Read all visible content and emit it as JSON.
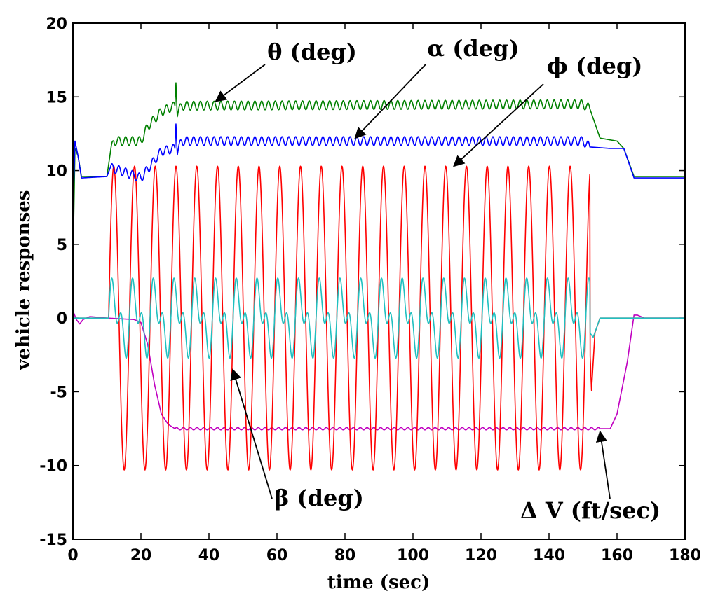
{
  "chart_data": {
    "type": "line",
    "title": "",
    "xlabel": "time (sec)",
    "ylabel": "vehicle responses",
    "xlim": [
      0,
      180
    ],
    "ylim": [
      -15,
      20
    ],
    "xticks": [
      0,
      20,
      40,
      60,
      80,
      100,
      120,
      140,
      160,
      180
    ],
    "yticks": [
      -15,
      -10,
      -5,
      0,
      5,
      10,
      15,
      20
    ],
    "grid": false,
    "series": [
      {
        "name": "θ (deg)",
        "color": "#008000",
        "model": "piecewise with small oscillation",
        "points": [
          [
            0,
            3.5
          ],
          [
            0.6,
            11.5
          ],
          [
            1.5,
            11.0
          ],
          [
            2.5,
            9.6
          ],
          [
            10,
            9.6
          ],
          [
            11,
            11.2
          ],
          [
            12,
            12.0
          ],
          [
            20,
            12.0
          ],
          [
            22,
            13.0
          ],
          [
            26,
            14.0
          ],
          [
            30,
            14.4
          ],
          [
            30.3,
            16.2
          ],
          [
            30.7,
            13.9
          ],
          [
            32,
            14.4
          ],
          [
            150,
            14.5
          ],
          [
            152,
            14.2
          ],
          [
            155,
            12.2
          ],
          [
            160,
            12.0
          ],
          [
            162,
            11.5
          ],
          [
            165,
            9.6
          ],
          [
            180,
            9.6
          ]
        ],
        "oscillation": {
          "start": 11,
          "end": 152,
          "amplitude": 0.3,
          "period": 2.0
        }
      },
      {
        "name": "α (deg)",
        "color": "#0000ff",
        "model": "piecewise with small oscillation",
        "points": [
          [
            0,
            7.0
          ],
          [
            0.6,
            12.0
          ],
          [
            1.5,
            11.0
          ],
          [
            2.5,
            9.5
          ],
          [
            10,
            9.6
          ],
          [
            11,
            10.2
          ],
          [
            14,
            10.0
          ],
          [
            20,
            9.5
          ],
          [
            24,
            10.7
          ],
          [
            26,
            11.3
          ],
          [
            30,
            11.5
          ],
          [
            30.3,
            13.4
          ],
          [
            30.7,
            11.3
          ],
          [
            32,
            12.0
          ],
          [
            150,
            12.0
          ],
          [
            152,
            11.6
          ],
          [
            158,
            11.5
          ],
          [
            162,
            11.5
          ],
          [
            165,
            9.5
          ],
          [
            180,
            9.5
          ]
        ],
        "oscillation": {
          "start": 11,
          "end": 152,
          "amplitude": 0.3,
          "period": 2.0
        }
      },
      {
        "name": "φ (deg)",
        "color": "#ff0000",
        "model": "sinusoid",
        "start": 10.5,
        "end": 152,
        "amplitude": 10.3,
        "period": 6.1,
        "after": [
          [
            152,
            -2.0
          ],
          [
            152.5,
            -4.9
          ],
          [
            153.5,
            -1.0
          ],
          [
            155,
            0
          ],
          [
            180,
            0
          ]
        ]
      },
      {
        "name": "β (deg)",
        "color": "#20c0c0",
        "model": "sinusoid with harmonic",
        "start": 10.5,
        "end": 152,
        "amplitude": 2.8,
        "period": 6.1,
        "after": [
          [
            152,
            -1.0
          ],
          [
            153,
            -1.3
          ],
          [
            155,
            0
          ],
          [
            180,
            0
          ]
        ]
      },
      {
        "name": "Δ V (ft/sec)",
        "color": "#c000c0",
        "model": "piecewise",
        "points": [
          [
            0,
            0.5
          ],
          [
            1,
            -0.1
          ],
          [
            2,
            -0.4
          ],
          [
            3,
            -0.1
          ],
          [
            5,
            0.1
          ],
          [
            10,
            0.0
          ],
          [
            18,
            -0.1
          ],
          [
            20,
            -0.3
          ],
          [
            22,
            -1.8
          ],
          [
            24,
            -4.5
          ],
          [
            26,
            -6.5
          ],
          [
            28,
            -7.2
          ],
          [
            30,
            -7.5
          ],
          [
            155,
            -7.5
          ],
          [
            158,
            -7.5
          ],
          [
            160,
            -6.5
          ],
          [
            163,
            -3.0
          ],
          [
            165,
            0.2
          ],
          [
            166,
            0.2
          ],
          [
            168,
            0.0
          ],
          [
            180,
            0.0
          ]
        ],
        "oscillation": {
          "start": 30,
          "end": 155,
          "amplitude": 0.08,
          "period": 2.0
        }
      }
    ],
    "annotations": [
      {
        "text": "θ (deg)",
        "points_to": [
          42,
          14.7
        ]
      },
      {
        "text": "α (deg)",
        "points_to": [
          83,
          12.2
        ]
      },
      {
        "text": "ϕ (deg)",
        "points_to": [
          112,
          10.3
        ]
      },
      {
        "text": "β (deg)",
        "points_to": [
          47,
          -3.5
        ]
      },
      {
        "text": "Δ V (ft/sec)",
        "points_to": [
          155,
          -7.7
        ]
      }
    ]
  }
}
